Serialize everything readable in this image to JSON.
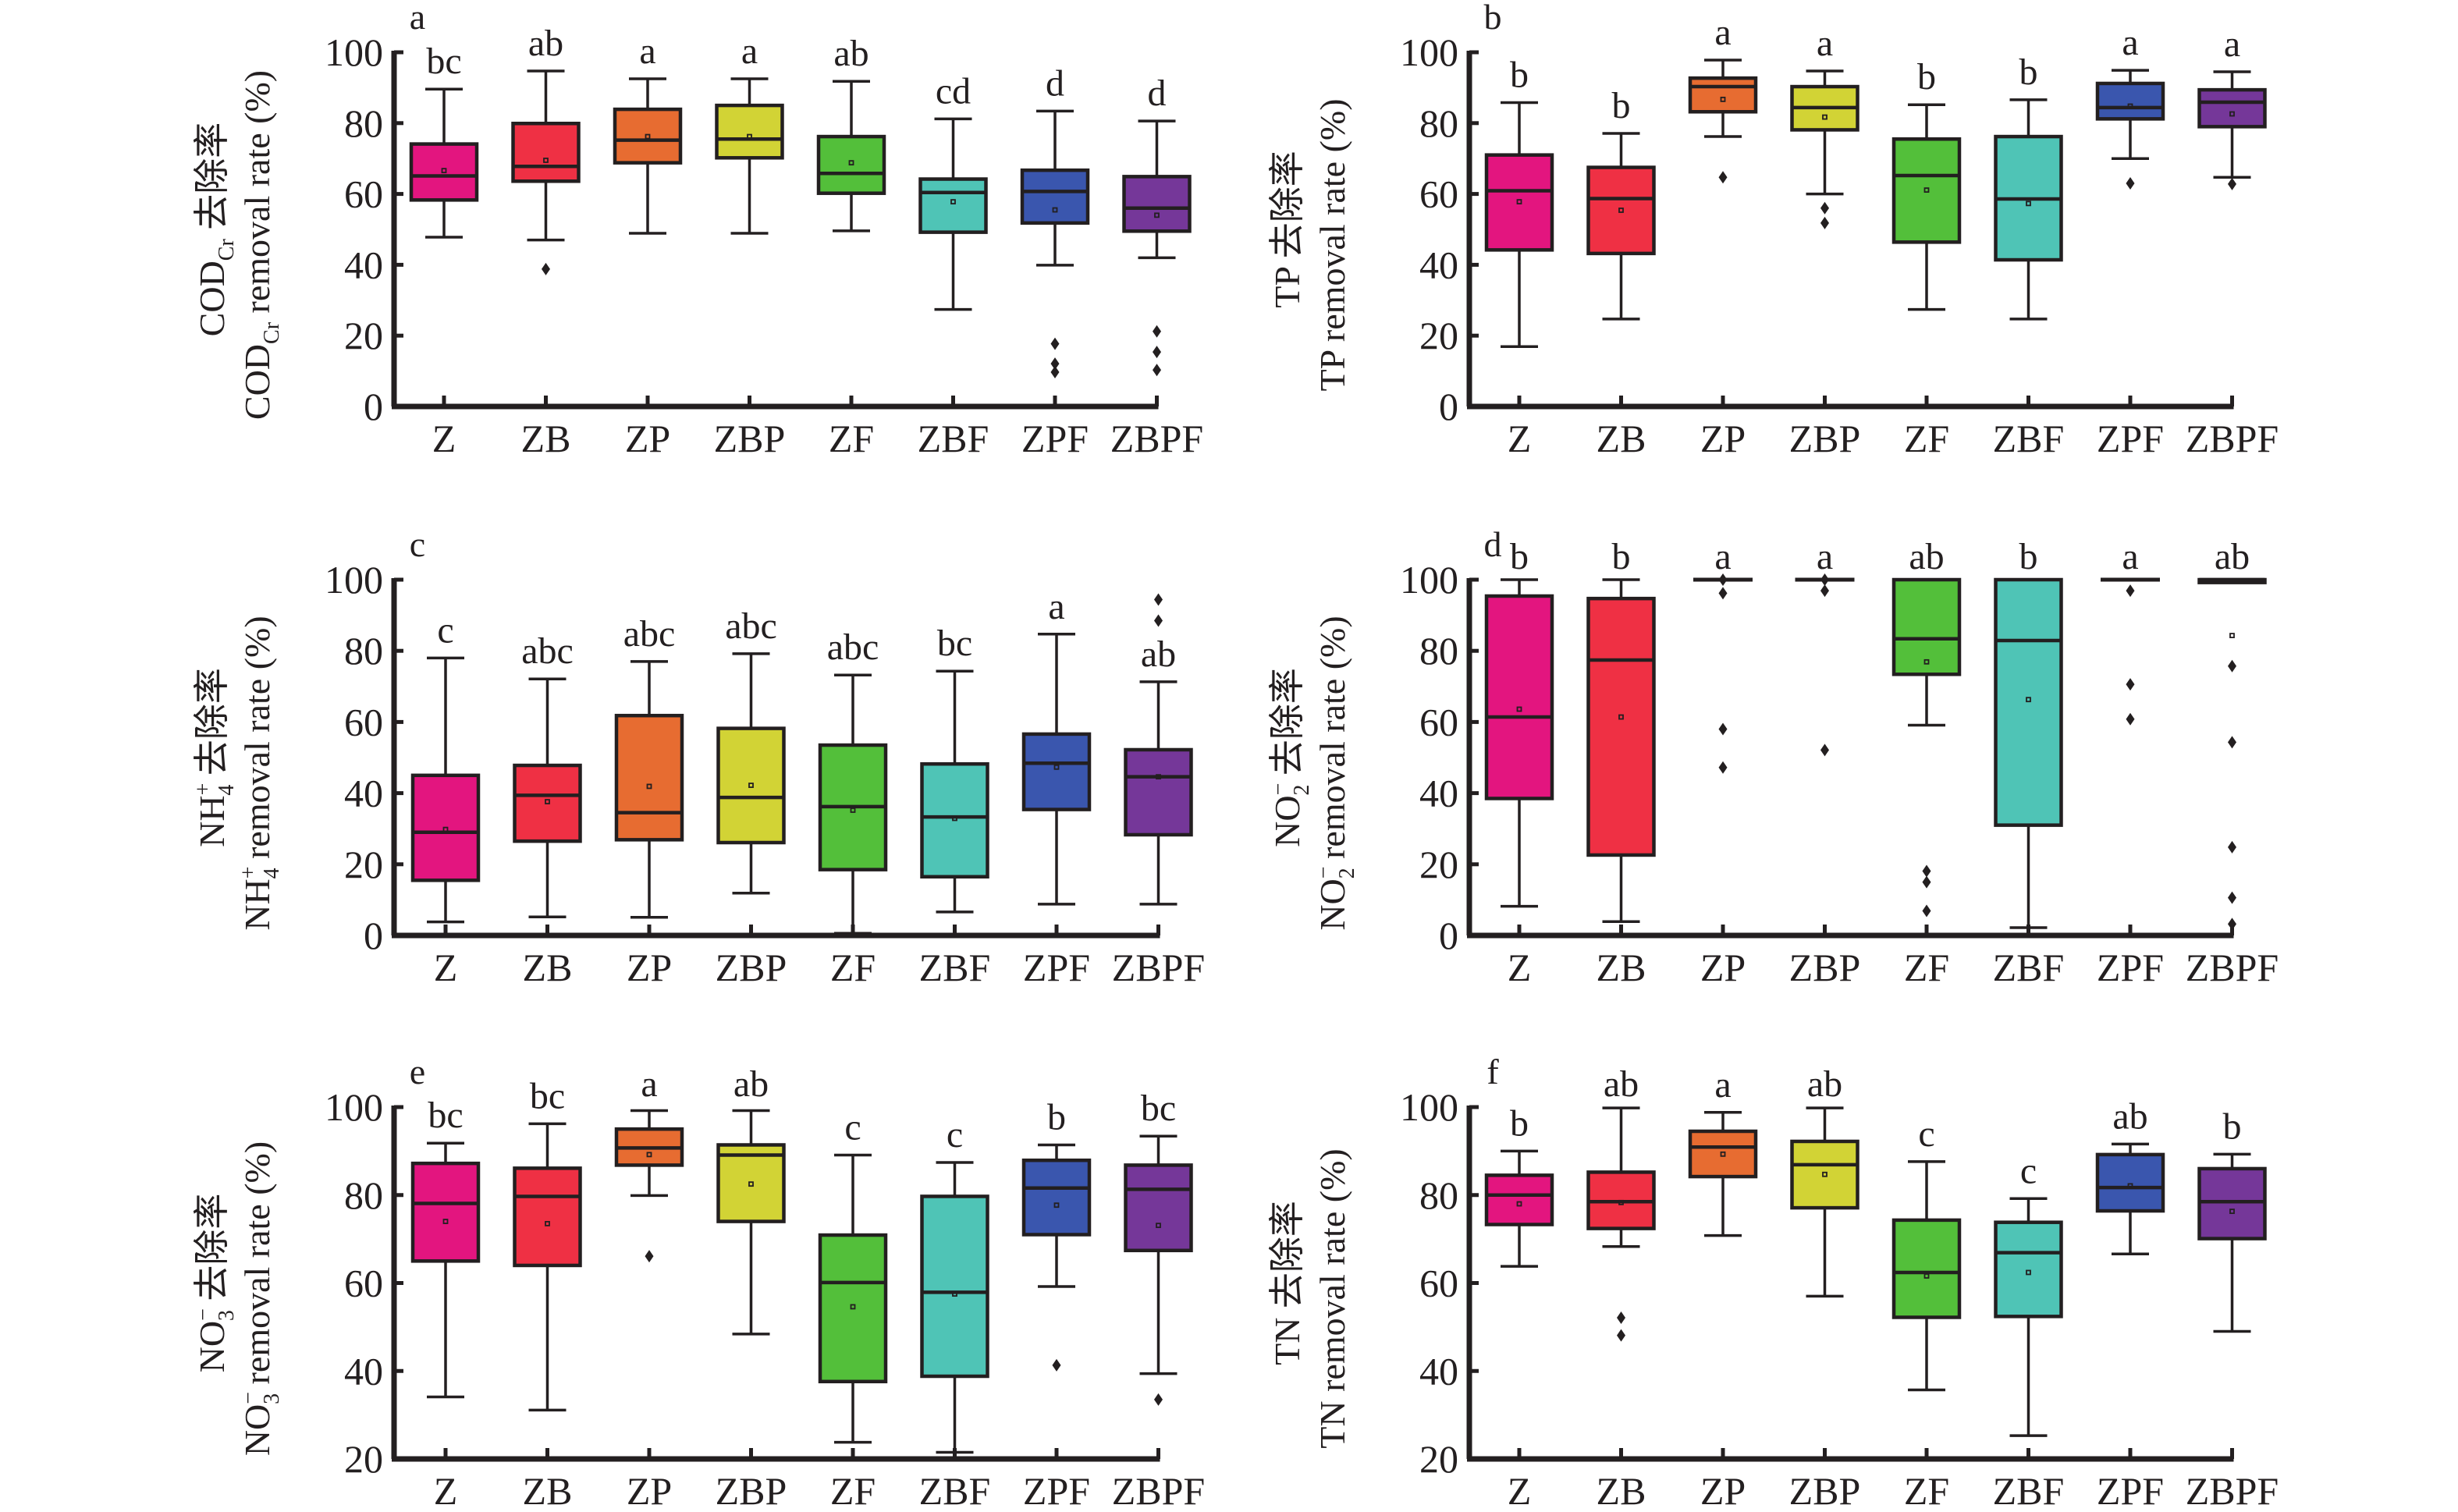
{
  "figure": {
    "groups": [
      "Z",
      "ZB",
      "ZP",
      "ZBP",
      "ZF",
      "ZBF",
      "ZPF",
      "ZBPF"
    ],
    "colors": {
      "Z": "#E3157F",
      "ZB": "#EF3044",
      "ZP": "#E76C31",
      "ZBP": "#D2D335",
      "ZF": "#53BF3A",
      "ZBF": "#4FC4B6",
      "ZPF": "#3A56AE",
      "ZBPF": "#753799"
    }
  },
  "chart_data": [
    {
      "id": "a",
      "type": "box",
      "panel_label": "a",
      "ylabel_cn": {
        "main": "COD",
        "sub": "Cr",
        "rest": " 去除率"
      },
      "ylabel_en": {
        "main": "COD",
        "sub": "Cr",
        "rest": " removal rate (%)"
      },
      "ylim": [
        0,
        100
      ],
      "yticks": [
        0,
        20,
        40,
        60,
        80,
        100
      ],
      "categories": [
        "Z",
        "ZB",
        "ZP",
        "ZBP",
        "ZF",
        "ZBF",
        "ZPF",
        "ZBPF"
      ],
      "boxes": [
        {
          "group": "Z",
          "whisker_low": 47.8,
          "q1": 58.3,
          "median": 65.1,
          "q3": 74.1,
          "whisker_high": 89.6,
          "mean": 66.6,
          "outliers": [],
          "sig": "bc"
        },
        {
          "group": "ZB",
          "whisker_low": 47.0,
          "q1": 63.6,
          "median": 67.8,
          "q3": 79.9,
          "whisker_high": 94.7,
          "mean": 69.5,
          "outliers": [
            38.8
          ],
          "sig": "ab"
        },
        {
          "group": "ZP",
          "whisker_low": 48.9,
          "q1": 68.8,
          "median": 75.2,
          "q3": 83.9,
          "whisker_high": 92.5,
          "mean": 76.2,
          "outliers": [],
          "sig": "a"
        },
        {
          "group": "ZBP",
          "whisker_low": 48.9,
          "q1": 70.2,
          "median": 75.5,
          "q3": 85.0,
          "whisker_high": 92.5,
          "mean": 76.2,
          "outliers": [],
          "sig": "a"
        },
        {
          "group": "ZF",
          "whisker_low": 49.6,
          "q1": 60.2,
          "median": 65.8,
          "q3": 76.2,
          "whisker_high": 91.8,
          "mean": 68.8,
          "outliers": [],
          "sig": "ab"
        },
        {
          "group": "ZBF",
          "whisker_low": 27.4,
          "q1": 49.2,
          "median": 60.4,
          "q3": 64.2,
          "whisker_high": 81.2,
          "mean": 57.8,
          "outliers": [],
          "sig": "cd"
        },
        {
          "group": "ZPF",
          "whisker_low": 39.9,
          "q1": 51.8,
          "median": 60.7,
          "q3": 66.7,
          "whisker_high": 83.4,
          "mean": 55.5,
          "outliers": [
            17.7,
            12.1,
            9.7
          ],
          "sig": "d"
        },
        {
          "group": "ZBPF",
          "whisker_low": 42.0,
          "q1": 49.5,
          "median": 56.0,
          "q3": 64.9,
          "whisker_high": 80.6,
          "mean": 54.0,
          "outliers": [
            21.2,
            15.4,
            10.3
          ],
          "sig": "d"
        }
      ]
    },
    {
      "id": "b",
      "type": "box",
      "panel_label": "b",
      "ylabel_cn": {
        "main": "TP",
        "sub": "",
        "rest": " 去除率"
      },
      "ylabel_en": {
        "main": "TP",
        "sub": "",
        "rest": " removal rate (%)"
      },
      "ylim": [
        0,
        100
      ],
      "yticks": [
        0,
        20,
        40,
        60,
        80,
        100
      ],
      "categories": [
        "Z",
        "ZB",
        "ZP",
        "ZBP",
        "ZF",
        "ZBF",
        "ZPF",
        "ZBPF"
      ],
      "boxes": [
        {
          "group": "Z",
          "whisker_low": 16.9,
          "q1": 44.2,
          "median": 60.9,
          "q3": 71.0,
          "whisker_high": 85.8,
          "mean": 57.8,
          "outliers": [],
          "sig": "b"
        },
        {
          "group": "ZB",
          "whisker_low": 24.7,
          "q1": 43.2,
          "median": 58.7,
          "q3": 67.5,
          "whisker_high": 77.1,
          "mean": 55.4,
          "outliers": [],
          "sig": "b"
        },
        {
          "group": "ZP",
          "whisker_low": 76.2,
          "q1": 83.2,
          "median": 90.3,
          "q3": 92.7,
          "whisker_high": 97.8,
          "mean": 86.7,
          "outliers": [
            64.7
          ],
          "sig": "a"
        },
        {
          "group": "ZBP",
          "whisker_low": 60.0,
          "q1": 78.1,
          "median": 84.4,
          "q3": 90.3,
          "whisker_high": 94.7,
          "mean": 81.7,
          "outliers": [
            56.0,
            51.8
          ],
          "sig": "a"
        },
        {
          "group": "ZF",
          "whisker_low": 27.4,
          "q1": 46.4,
          "median": 65.2,
          "q3": 75.5,
          "whisker_high": 85.2,
          "mean": 61.1,
          "outliers": [],
          "sig": "b"
        },
        {
          "group": "ZBF",
          "whisker_low": 24.7,
          "q1": 41.4,
          "median": 58.6,
          "q3": 76.2,
          "whisker_high": 86.6,
          "mean": 57.3,
          "outliers": [],
          "sig": "b"
        },
        {
          "group": "ZPF",
          "whisker_low": 70.0,
          "q1": 81.2,
          "median": 84.4,
          "q3": 91.2,
          "whisker_high": 94.9,
          "mean": 84.8,
          "outliers": [
            63.0
          ],
          "sig": "a"
        },
        {
          "group": "ZBPF",
          "whisker_low": 64.7,
          "q1": 79.0,
          "median": 85.9,
          "q3": 89.4,
          "whisker_high": 94.5,
          "mean": 82.6,
          "outliers": [
            62.8
          ],
          "sig": "a"
        }
      ]
    },
    {
      "id": "c",
      "type": "box",
      "panel_label": "c",
      "ylabel_cn": {
        "main": "NH",
        "sub": "4",
        "sup": "+",
        "rest": " 去除率"
      },
      "ylabel_en": {
        "main": "NH",
        "sub": "4",
        "sup": "+",
        "rest": " removal rate (%)"
      },
      "ylim": [
        0,
        100
      ],
      "yticks": [
        0,
        20,
        40,
        60,
        80,
        100
      ],
      "categories": [
        "Z",
        "ZB",
        "ZP",
        "ZBP",
        "ZF",
        "ZBF",
        "ZPF",
        "ZBPF"
      ],
      "boxes": [
        {
          "group": "Z",
          "whisker_low": 3.8,
          "q1": 15.5,
          "median": 29.0,
          "q3": 45.0,
          "whisker_high": 78.0,
          "mean": 29.8,
          "outliers": [],
          "sig": "c"
        },
        {
          "group": "ZB",
          "whisker_low": 5.2,
          "q1": 26.5,
          "median": 39.4,
          "q3": 47.8,
          "whisker_high": 72.1,
          "mean": 37.6,
          "outliers": [],
          "sig": "abc"
        },
        {
          "group": "ZP",
          "whisker_low": 5.1,
          "q1": 26.9,
          "median": 34.5,
          "q3": 61.8,
          "whisker_high": 77.0,
          "mean": 41.9,
          "outliers": [],
          "sig": "abc"
        },
        {
          "group": "ZBP",
          "whisker_low": 11.9,
          "q1": 26.1,
          "median": 38.8,
          "q3": 58.2,
          "whisker_high": 79.2,
          "mean": 42.2,
          "outliers": [],
          "sig": "abc"
        },
        {
          "group": "ZF",
          "whisker_low": 0.6,
          "q1": 18.5,
          "median": 36.2,
          "q3": 53.5,
          "whisker_high": 73.2,
          "mean": 35.2,
          "outliers": [],
          "sig": "abc"
        },
        {
          "group": "ZBF",
          "whisker_low": 6.6,
          "q1": 16.5,
          "median": 33.3,
          "q3": 48.2,
          "whisker_high": 74.3,
          "mean": 32.9,
          "outliers": [],
          "sig": "bc"
        },
        {
          "group": "ZPF",
          "whisker_low": 8.8,
          "q1": 35.4,
          "median": 48.4,
          "q3": 56.6,
          "whisker_high": 84.7,
          "mean": 47.3,
          "outliers": [],
          "sig": "a"
        },
        {
          "group": "ZBPF",
          "whisker_low": 8.8,
          "q1": 28.3,
          "median": 44.6,
          "q3": 52.2,
          "whisker_high": 71.3,
          "mean": 44.6,
          "outliers": [
            94.4,
            88.5
          ],
          "sig": "ab"
        }
      ]
    },
    {
      "id": "d",
      "type": "box",
      "panel_label": "d",
      "ylabel_cn": {
        "main": "NO",
        "sub": "2",
        "sup": "−",
        "rest": " 去除率"
      },
      "ylabel_en": {
        "main": "NO",
        "sub": "2",
        "sup": "−",
        "rest": " removal rate (%)"
      },
      "ylim": [
        0,
        100
      ],
      "yticks": [
        0,
        20,
        40,
        60,
        80,
        100
      ],
      "categories": [
        "Z",
        "ZB",
        "ZP",
        "ZBP",
        "ZF",
        "ZBF",
        "ZPF",
        "ZBPF"
      ],
      "boxes": [
        {
          "group": "Z",
          "whisker_low": 8.2,
          "q1": 38.5,
          "median": 61.4,
          "q3": 95.4,
          "whisker_high": 100,
          "mean": 63.6,
          "outliers": [],
          "sig": "b"
        },
        {
          "group": "ZB",
          "whisker_low": 3.9,
          "q1": 22.6,
          "median": 77.4,
          "q3": 94.7,
          "whisker_high": 100,
          "mean": 61.4,
          "outliers": [],
          "sig": "b"
        },
        {
          "group": "ZP",
          "whisker_low": 100,
          "q1": 100,
          "median": 100,
          "q3": 100,
          "whisker_high": 100,
          "mean": null,
          "outliers": [
            100,
            96.2,
            58.0,
            47.2
          ],
          "sig": "a"
        },
        {
          "group": "ZBP",
          "whisker_low": 100,
          "q1": 100,
          "median": 100,
          "q3": 100,
          "whisker_high": 100,
          "mean": null,
          "outliers": [
            100,
            96.9,
            52.1
          ],
          "sig": "a"
        },
        {
          "group": "ZF",
          "whisker_low": 59.1,
          "q1": 73.4,
          "median": 83.4,
          "q3": 100,
          "whisker_high": 100,
          "mean": 76.9,
          "outliers": [
            18.1,
            15.0,
            6.9
          ],
          "sig": "ab"
        },
        {
          "group": "ZBF",
          "whisker_low": 2.2,
          "q1": 31.0,
          "median": 82.9,
          "q3": 100,
          "whisker_high": 100,
          "mean": 66.3,
          "outliers": [],
          "sig": "b"
        },
        {
          "group": "ZPF",
          "whisker_low": 100,
          "q1": 100,
          "median": 100,
          "q3": 100,
          "whisker_high": 100,
          "mean": null,
          "outliers": [
            96.9,
            70.6,
            60.8
          ],
          "sig": "a"
        },
        {
          "group": "ZBPF",
          "whisker_low": 99.2,
          "q1": 99.2,
          "median": 100,
          "q3": 100,
          "whisker_high": 100,
          "mean": 84.3,
          "outliers": [
            75.7,
            54.3,
            24.8,
            10.6,
            3.2
          ],
          "sig": "ab"
        }
      ]
    },
    {
      "id": "e",
      "type": "box",
      "panel_label": "e",
      "ylabel_cn": {
        "main": "NO",
        "sub": "3",
        "sup": "−",
        "rest": " 去除率"
      },
      "ylabel_en": {
        "main": "NO",
        "sub": "3",
        "sup": "−",
        "rest": " removal rate (%)"
      },
      "ylim": [
        20,
        100
      ],
      "yticks": [
        20,
        40,
        60,
        80,
        100
      ],
      "categories": [
        "Z",
        "ZB",
        "ZP",
        "ZBP",
        "ZF",
        "ZBF",
        "ZPF",
        "ZBPF"
      ],
      "boxes": [
        {
          "group": "Z",
          "whisker_low": 34.1,
          "q1": 65.0,
          "median": 78.1,
          "q3": 87.2,
          "whisker_high": 91.8,
          "mean": 74.0,
          "outliers": [],
          "sig": "bc"
        },
        {
          "group": "ZB",
          "whisker_low": 31.1,
          "q1": 64.0,
          "median": 79.7,
          "q3": 86.1,
          "whisker_high": 96.2,
          "mean": 73.5,
          "outliers": [],
          "sig": "bc"
        },
        {
          "group": "ZP",
          "whisker_low": 79.9,
          "q1": 86.8,
          "median": 90.7,
          "q3": 95.0,
          "whisker_high": 99.2,
          "mean": 89.2,
          "outliers": [
            66.1
          ],
          "sig": "a"
        },
        {
          "group": "ZBP",
          "whisker_low": 48.4,
          "q1": 74.0,
          "median": 89.1,
          "q3": 91.4,
          "whisker_high": 99.2,
          "mean": 82.5,
          "outliers": [],
          "sig": "ab"
        },
        {
          "group": "ZF",
          "whisker_low": 23.8,
          "q1": 37.6,
          "median": 60.1,
          "q3": 70.9,
          "whisker_high": 89.1,
          "mean": 54.6,
          "outliers": [],
          "sig": "c"
        },
        {
          "group": "ZBF",
          "whisker_low": 21.5,
          "q1": 38.8,
          "median": 57.9,
          "q3": 79.7,
          "whisker_high": 87.4,
          "mean": 57.5,
          "outliers": [],
          "sig": "c"
        },
        {
          "group": "ZPF",
          "whisker_low": 59.2,
          "q1": 71.0,
          "median": 81.6,
          "q3": 87.9,
          "whisker_high": 91.4,
          "mean": 77.7,
          "outliers": [
            41.3
          ],
          "sig": "b"
        },
        {
          "group": "ZBPF",
          "whisker_low": 39.4,
          "q1": 67.4,
          "median": 81.3,
          "q3": 86.8,
          "whisker_high": 93.4,
          "mean": 73.1,
          "outliers": [
            33.5
          ],
          "sig": "bc"
        }
      ]
    },
    {
      "id": "f",
      "type": "box",
      "panel_label": "f",
      "ylabel_cn": {
        "main": "TN",
        "sub": "",
        "rest": " 去除率"
      },
      "ylabel_en": {
        "main": "TN",
        "sub": "",
        "rest": " removal rate (%)"
      },
      "ylim": [
        20,
        100
      ],
      "yticks": [
        20,
        40,
        60,
        80,
        100
      ],
      "categories": [
        "Z",
        "ZB",
        "ZP",
        "ZBP",
        "ZF",
        "ZBF",
        "ZPF",
        "ZBPF"
      ],
      "boxes": [
        {
          "group": "Z",
          "whisker_low": 63.8,
          "q1": 73.3,
          "median": 80.0,
          "q3": 84.5,
          "whisker_high": 90.0,
          "mean": 78.0,
          "outliers": [],
          "sig": "b"
        },
        {
          "group": "ZB",
          "whisker_low": 68.3,
          "q1": 72.4,
          "median": 78.5,
          "q3": 85.2,
          "whisker_high": 99.8,
          "mean": 78.3,
          "outliers": [
            52.1,
            48.1
          ],
          "sig": "ab"
        },
        {
          "group": "ZP",
          "whisker_low": 70.8,
          "q1": 84.2,
          "median": 90.9,
          "q3": 94.5,
          "whisker_high": 98.8,
          "mean": 89.3,
          "outliers": [],
          "sig": "a"
        },
        {
          "group": "ZBP",
          "whisker_low": 57.0,
          "q1": 77.1,
          "median": 86.9,
          "q3": 92.2,
          "whisker_high": 99.8,
          "mean": 84.7,
          "outliers": [],
          "sig": "ab"
        },
        {
          "group": "ZF",
          "whisker_low": 35.7,
          "q1": 52.2,
          "median": 62.4,
          "q3": 74.3,
          "whisker_high": 87.6,
          "mean": 61.6,
          "outliers": [],
          "sig": "c"
        },
        {
          "group": "ZBF",
          "whisker_low": 25.3,
          "q1": 52.4,
          "median": 66.9,
          "q3": 73.8,
          "whisker_high": 79.2,
          "mean": 62.4,
          "outliers": [],
          "sig": "c"
        },
        {
          "group": "ZPF",
          "whisker_low": 66.6,
          "q1": 76.4,
          "median": 81.7,
          "q3": 89.2,
          "whisker_high": 91.6,
          "mean": 82.1,
          "outliers": [],
          "sig": "ab"
        },
        {
          "group": "ZBPF",
          "whisker_low": 49.0,
          "q1": 70.1,
          "median": 78.5,
          "q3": 86.0,
          "whisker_high": 89.3,
          "mean": 76.3,
          "outliers": [],
          "sig": "b"
        }
      ]
    }
  ]
}
